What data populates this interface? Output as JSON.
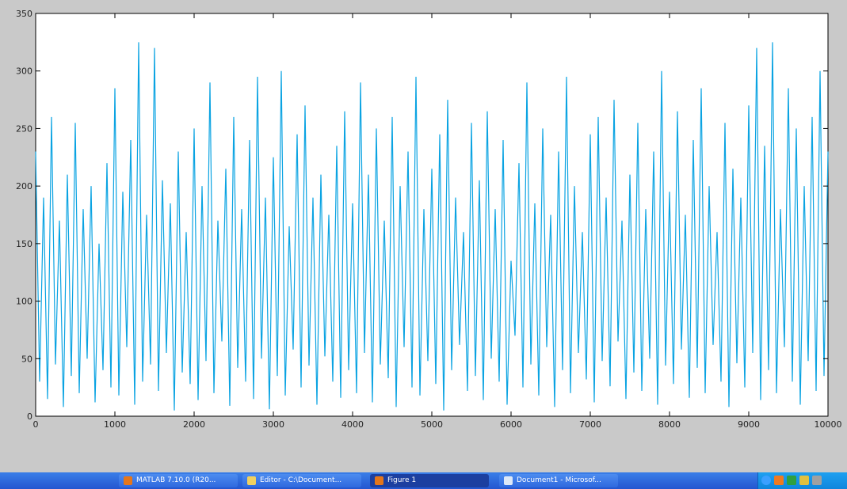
{
  "chart_data": {
    "type": "line",
    "xlim": [
      0,
      10000
    ],
    "ylim": [
      0,
      350
    ],
    "xticks": [
      0,
      1000,
      2000,
      3000,
      4000,
      5000,
      6000,
      7000,
      8000,
      9000,
      10000
    ],
    "yticks": [
      0,
      50,
      100,
      150,
      200,
      250,
      300,
      350
    ],
    "x": [
      0,
      50,
      100,
      150,
      200,
      250,
      300,
      350,
      400,
      450,
      500,
      550,
      600,
      650,
      700,
      750,
      800,
      850,
      900,
      950,
      1000,
      1050,
      1100,
      1150,
      1200,
      1250,
      1300,
      1350,
      1400,
      1450,
      1500,
      1550,
      1600,
      1650,
      1700,
      1750,
      1800,
      1850,
      1900,
      1950,
      2000,
      2050,
      2100,
      2150,
      2200,
      2250,
      2300,
      2350,
      2400,
      2450,
      2500,
      2550,
      2600,
      2650,
      2700,
      2750,
      2800,
      2850,
      2900,
      2950,
      3000,
      3050,
      3100,
      3150,
      3200,
      3250,
      3300,
      3350,
      3400,
      3450,
      3500,
      3550,
      3600,
      3650,
      3700,
      3750,
      3800,
      3850,
      3900,
      3950,
      4000,
      4050,
      4100,
      4150,
      4200,
      4250,
      4300,
      4350,
      4400,
      4450,
      4500,
      4550,
      4600,
      4650,
      4700,
      4750,
      4800,
      4850,
      4900,
      4950,
      5000,
      5050,
      5100,
      5150,
      5200,
      5250,
      5300,
      5350,
      5400,
      5450,
      5500,
      5550,
      5600,
      5650,
      5700,
      5750,
      5800,
      5850,
      5900,
      5950,
      6000,
      6050,
      6100,
      6150,
      6200,
      6250,
      6300,
      6350,
      6400,
      6450,
      6500,
      6550,
      6600,
      6650,
      6700,
      6750,
      6800,
      6850,
      6900,
      6950,
      7000,
      7050,
      7100,
      7150,
      7200,
      7250,
      7300,
      7350,
      7400,
      7450,
      7500,
      7550,
      7600,
      7650,
      7700,
      7750,
      7800,
      7850,
      7900,
      7950,
      8000,
      8050,
      8100,
      8150,
      8200,
      8250,
      8300,
      8350,
      8400,
      8450,
      8500,
      8550,
      8600,
      8650,
      8700,
      8750,
      8800,
      8850,
      8900,
      8950,
      9000,
      9050,
      9100,
      9150,
      9200,
      9250,
      9300,
      9350,
      9400,
      9450,
      9500,
      9550,
      9600,
      9650,
      9700,
      9750,
      9800,
      9850,
      9900,
      9950,
      10000
    ],
    "series": [
      {
        "color": "#0aa3e2",
        "values": [
          230,
          30,
          190,
          15,
          260,
          45,
          170,
          8,
          210,
          35,
          255,
          20,
          180,
          50,
          200,
          12,
          150,
          40,
          220,
          25,
          285,
          18,
          195,
          60,
          240,
          10,
          325,
          30,
          175,
          45,
          320,
          22,
          205,
          55,
          185,
          5,
          230,
          38,
          160,
          28,
          250,
          14,
          200,
          48,
          290,
          20,
          170,
          65,
          215,
          9,
          260,
          42,
          180,
          30,
          240,
          15,
          295,
          50,
          190,
          6,
          225,
          35,
          300,
          18,
          165,
          58,
          245,
          25,
          270,
          44,
          190,
          10,
          210,
          52,
          175,
          30,
          235,
          16,
          265,
          40,
          185,
          20,
          290,
          55,
          210,
          12,
          250,
          45,
          170,
          33,
          260,
          8,
          200,
          60,
          230,
          25,
          295,
          18,
          180,
          48,
          215,
          28,
          245,
          5,
          275,
          40,
          190,
          62,
          160,
          22,
          255,
          35,
          205,
          14,
          265,
          50,
          180,
          30,
          240,
          10,
          135,
          70,
          220,
          25,
          290,
          45,
          185,
          18,
          250,
          60,
          175,
          8,
          230,
          40,
          295,
          20,
          200,
          55,
          160,
          32,
          245,
          12,
          260,
          48,
          190,
          26,
          275,
          65,
          170,
          15,
          210,
          38,
          255,
          22,
          180,
          50,
          230,
          10,
          300,
          44,
          195,
          28,
          265,
          58,
          175,
          16,
          240,
          42,
          285,
          20,
          200,
          62,
          160,
          30,
          255,
          8,
          215,
          46,
          190,
          25,
          270,
          55,
          320,
          14,
          235,
          40,
          325,
          20,
          180,
          60,
          285,
          30,
          250,
          10,
          200,
          48,
          260,
          22,
          300,
          35,
          230
        ]
      }
    ]
  },
  "taskbar": [
    "MATLAB 7.10.0 (R20...",
    "Editor - C:\\Document...",
    "Figure 1",
    "Document1 - Microsof..."
  ]
}
